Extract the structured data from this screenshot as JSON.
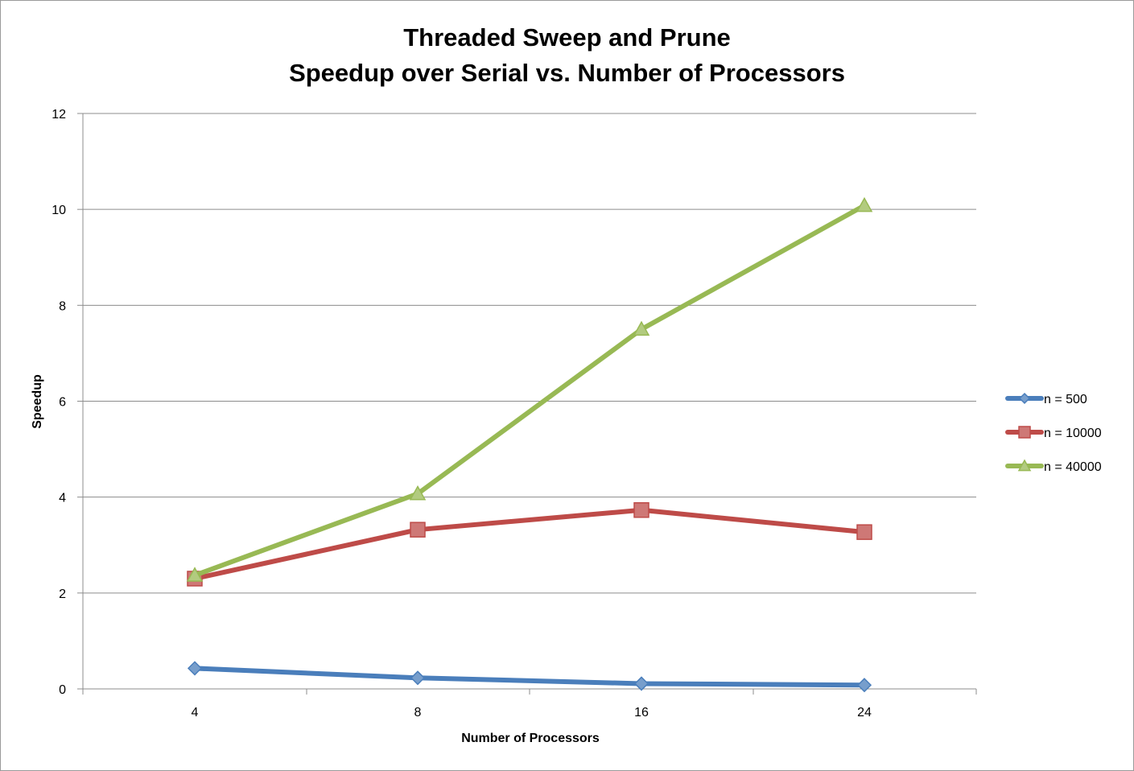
{
  "chart_data": {
    "type": "line",
    "title_line_1": "Threaded Sweep and Prune",
    "title_line_2": "Speedup over Serial vs. Number of Processors",
    "xlabel": "Number of Processors",
    "ylabel": "Speedup",
    "categories": [
      "4",
      "8",
      "16",
      "24"
    ],
    "ylim": [
      0,
      12
    ],
    "yticks": [
      0,
      2,
      4,
      6,
      8,
      10,
      12
    ],
    "grid": true,
    "legend_position": "right",
    "series": [
      {
        "name": "n = 500",
        "color": "#4a7ebb",
        "marker": "diamond",
        "values": [
          0.43,
          0.23,
          0.11,
          0.08
        ]
      },
      {
        "name": "n = 10000",
        "color": "#be4b48",
        "marker": "square",
        "values": [
          2.3,
          3.32,
          3.73,
          3.27
        ]
      },
      {
        "name": "n = 40000",
        "color": "#98b954",
        "marker": "triangle",
        "values": [
          2.37,
          4.07,
          7.5,
          10.08
        ]
      }
    ]
  }
}
